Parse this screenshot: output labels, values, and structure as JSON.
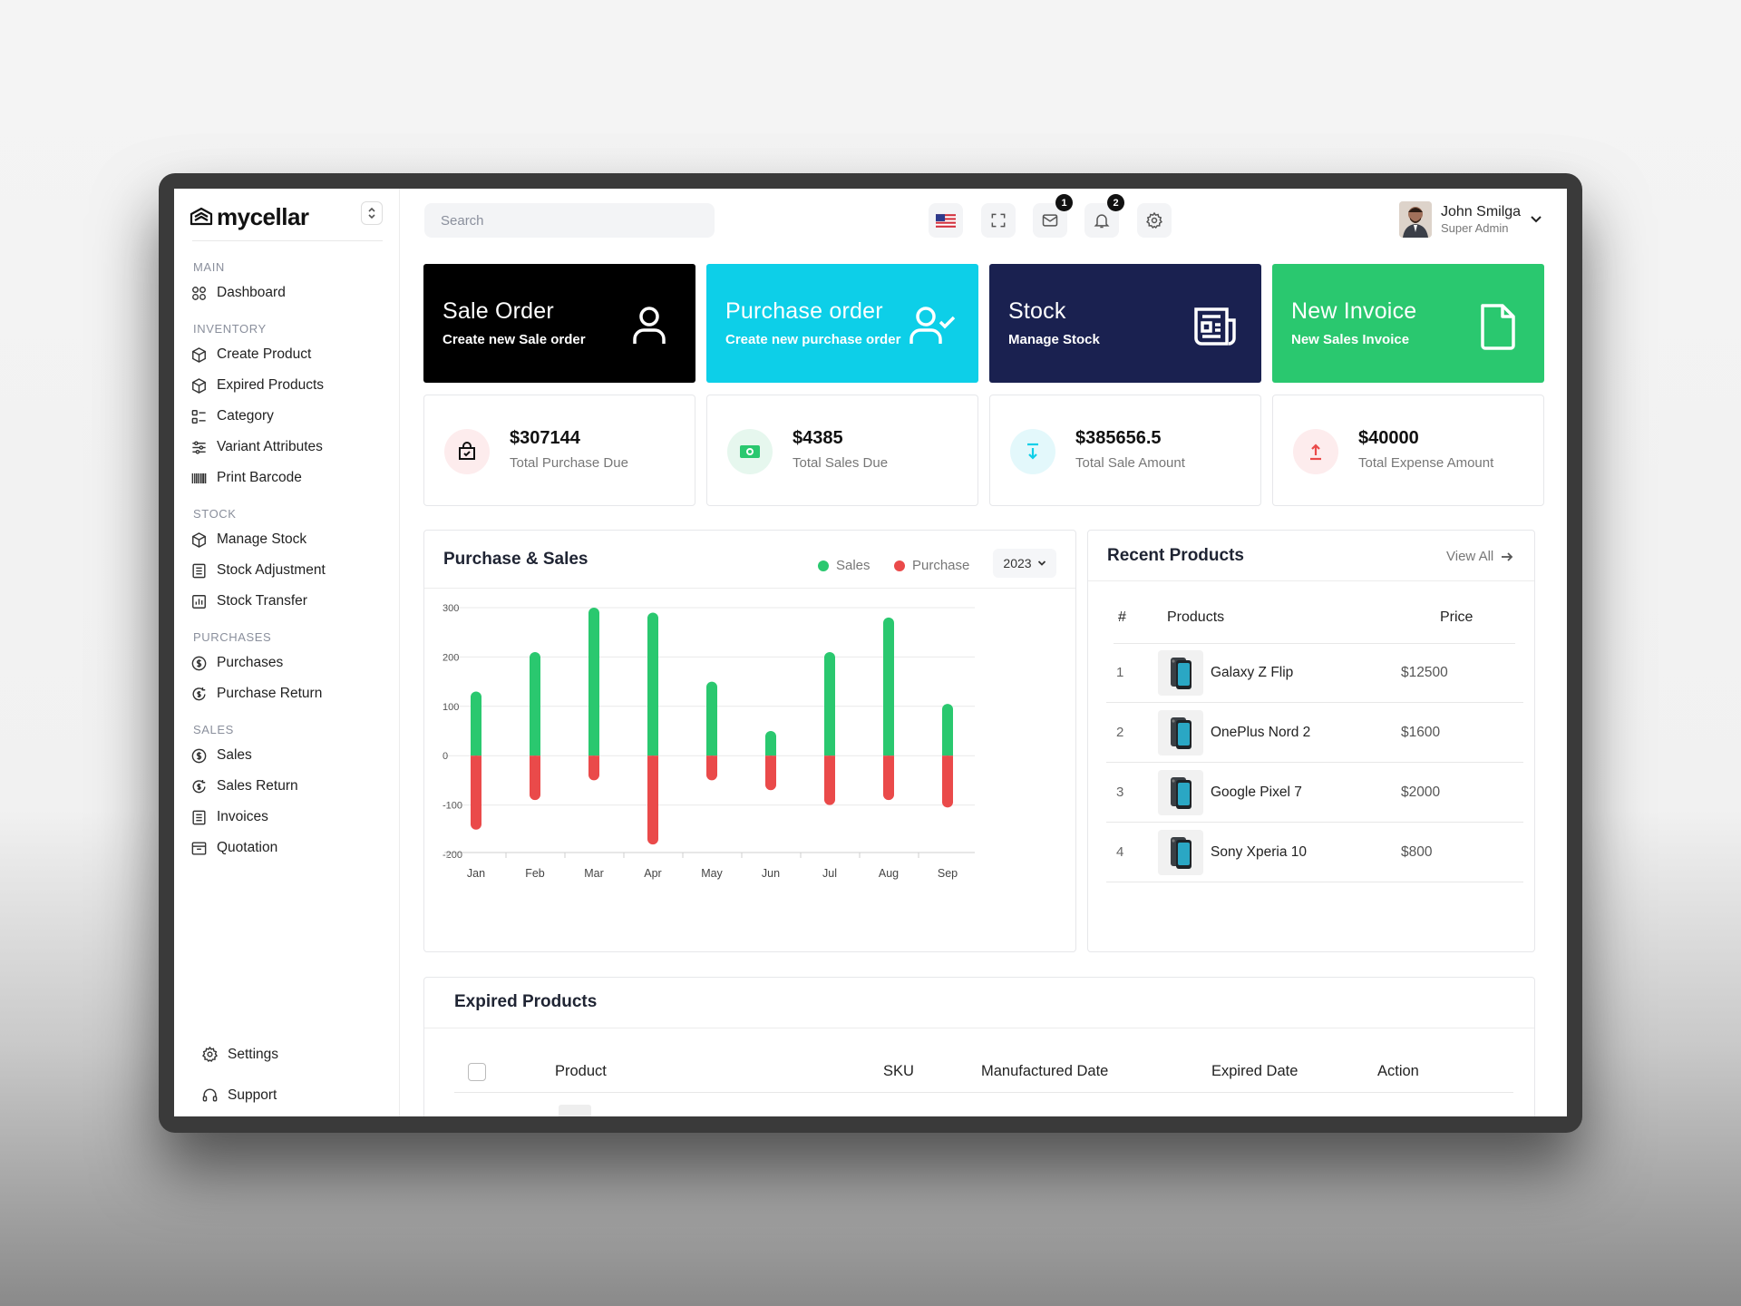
{
  "app": {
    "logo_text": "mycellar"
  },
  "sidebar": {
    "sections": [
      {
        "title": "MAIN",
        "items": [
          {
            "label": "Dashboard",
            "icon": "dashboard-icon"
          }
        ]
      },
      {
        "title": "INVENTORY",
        "items": [
          {
            "label": "Create Product",
            "icon": "box-icon"
          },
          {
            "label": "Expired Products",
            "icon": "box-icon"
          },
          {
            "label": "Category",
            "icon": "category-icon"
          },
          {
            "label": "Variant Attributes",
            "icon": "sliders-icon"
          },
          {
            "label": "Print Barcode",
            "icon": "barcode-icon"
          }
        ]
      },
      {
        "title": "STOCK",
        "items": [
          {
            "label": "Manage Stock",
            "icon": "box-icon"
          },
          {
            "label": "Stock Adjustment",
            "icon": "list-icon"
          },
          {
            "label": "Stock Transfer",
            "icon": "chart-icon"
          }
        ]
      },
      {
        "title": "PURCHASES",
        "items": [
          {
            "label": "Purchases",
            "icon": "dollar-circle-icon"
          },
          {
            "label": "Purchase Return",
            "icon": "return-icon"
          }
        ]
      },
      {
        "title": "SALES",
        "items": [
          {
            "label": "Sales",
            "icon": "dollar-circle-icon"
          },
          {
            "label": "Sales Return",
            "icon": "return-icon"
          },
          {
            "label": "Invoices",
            "icon": "list-icon"
          },
          {
            "label": "Quotation",
            "icon": "archive-icon"
          }
        ]
      }
    ],
    "bottom": [
      {
        "label": "Settings",
        "icon": "gear-icon"
      },
      {
        "label": "Support",
        "icon": "headset-icon"
      }
    ]
  },
  "topbar": {
    "search_placeholder": "Search",
    "mail_count": "1",
    "notification_count": "2",
    "user": {
      "name": "John Smilga",
      "role": "Super Admin"
    }
  },
  "action_cards": [
    {
      "title": "Sale Order",
      "subtitle": "Create new Sale order",
      "color": "#000000",
      "icon": "user-icon"
    },
    {
      "title": "Purchase order",
      "subtitle": "Create new purchase order",
      "color": "#0dcfe8",
      "icon": "user-check-icon"
    },
    {
      "title": "Stock",
      "subtitle": "Manage Stock",
      "color": "#1a2150",
      "icon": "newspaper-icon"
    },
    {
      "title": "New Invoice",
      "subtitle": "New Sales Invoice",
      "color": "#2ac86f",
      "icon": "document-icon"
    }
  ],
  "stats": [
    {
      "value": "$307144",
      "label": "Total Purchase Due",
      "color": "#fdeced",
      "icon": "bag-icon"
    },
    {
      "value": "$4385",
      "label": "Total Sales Due",
      "color": "#e6f7ee",
      "icon": "cash-icon"
    },
    {
      "value": "$385656.5",
      "label": "Total Sale Amount",
      "color": "#e3f8fb",
      "icon": "download-icon"
    },
    {
      "value": "$40000",
      "label": "Total Expense Amount",
      "color": "#fdeced",
      "icon": "upload-icon"
    }
  ],
  "purchase_sales": {
    "title": "Purchase & Sales",
    "year": "2023"
  },
  "chart_data": {
    "type": "bar",
    "categories": [
      "Jan",
      "Feb",
      "Mar",
      "Apr",
      "May",
      "Jun",
      "Jul",
      "Aug",
      "Sep"
    ],
    "series": [
      {
        "name": "Sales",
        "color": "#2ac86f",
        "values": [
          130,
          210,
          300,
          290,
          150,
          50,
          210,
          280,
          105
        ]
      },
      {
        "name": "Purchase",
        "color": "#ea4a4a",
        "values": [
          -150,
          -90,
          -50,
          -180,
          -50,
          -70,
          -100,
          -90,
          -105
        ]
      }
    ],
    "yticks": [
      "300",
      "200",
      "100",
      "0",
      "-100",
      "-200"
    ],
    "ylim": [
      -200,
      300
    ],
    "grid": true,
    "legend": "top-right"
  },
  "recent_products": {
    "title": "Recent Products",
    "view_all": "View All",
    "headers": {
      "num": "#",
      "product": "Products",
      "price": "Price"
    },
    "rows": [
      {
        "num": "1",
        "name": "Galaxy Z Flip",
        "price": "$12500"
      },
      {
        "num": "2",
        "name": "OnePlus Nord 2",
        "price": "$1600"
      },
      {
        "num": "3",
        "name": "Google Pixel 7",
        "price": "$2000"
      },
      {
        "num": "4",
        "name": "Sony Xperia 10",
        "price": "$800"
      }
    ]
  },
  "expired_products": {
    "title": "Expired Products",
    "headers": {
      "product": "Product",
      "sku": "SKU",
      "manufactured": "Manufactured Date",
      "expired": "Expired Date",
      "action": "Action"
    }
  }
}
